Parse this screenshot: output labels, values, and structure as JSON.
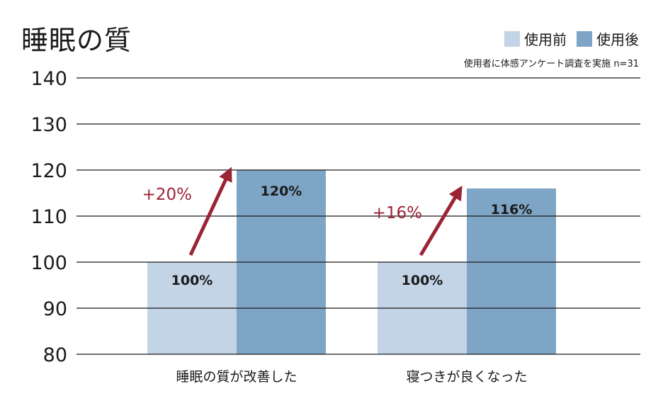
{
  "chart_data": {
    "type": "bar",
    "title": "睡眠の質",
    "categories": [
      "睡眠の質が改善した",
      "寝つきが良くなった"
    ],
    "series": [
      {
        "name": "使用前",
        "values": [
          100,
          100
        ],
        "color": "#c3d4e7"
      },
      {
        "name": "使用後",
        "values": [
          120,
          116
        ],
        "color": "#7fa5c6"
      }
    ],
    "data_labels": [
      [
        "100%",
        "120%"
      ],
      [
        "100%",
        "116%"
      ]
    ],
    "annotations": [
      {
        "category": "睡眠の質が改善した",
        "text": "+20%"
      },
      {
        "category": "寝つきが良くなった",
        "text": "+16%"
      }
    ],
    "annotation_color": "#9b2335",
    "y_ticks": [
      "80",
      "90",
      "100",
      "110",
      "120",
      "130",
      "140"
    ],
    "ylim": [
      80,
      140
    ],
    "grid": true,
    "legend_position": "top-right",
    "note": "使用者に体感アンケート調査を実施 n=31",
    "xlabel": "",
    "ylabel": ""
  }
}
